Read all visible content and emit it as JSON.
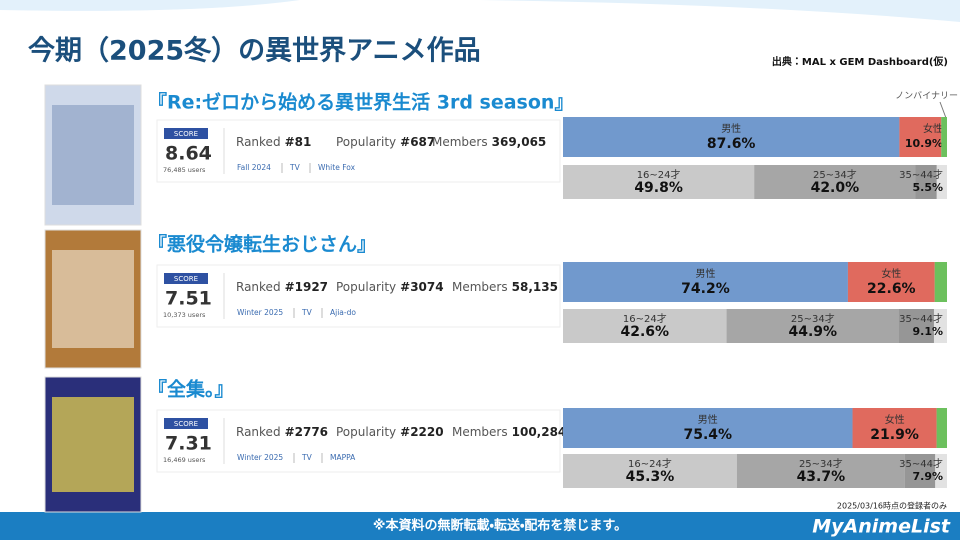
{
  "header": {
    "title": "今期（2025冬）の異世界アニメ作品",
    "source": "出典：MAL x GEM Dashboard(仮)",
    "nonbinary_label": "ノンバイナリー"
  },
  "entries": [
    {
      "title": "『Re:ゼロから始める異世界生活 3rd season』",
      "score_label": "SCORE",
      "score": "8.64",
      "users": "76,485 users",
      "ranked_label": "Ranked",
      "ranked": "#81",
      "popularity_label": "Popularity",
      "popularity": "#687",
      "members_label": "Members",
      "members": "369,065",
      "season": "Fall 2024",
      "format": "TV",
      "studio": "White Fox",
      "gender": [
        {
          "name": "男性",
          "value": 87.6,
          "label": "87.6%",
          "color": "#7199cd"
        },
        {
          "name": "女性",
          "value": 10.9,
          "label": "10.9%",
          "color": "#e06a5e"
        },
        {
          "value": 1.5,
          "color": "#6cc05d"
        }
      ],
      "age": [
        {
          "name": "16~24才",
          "value": 49.8,
          "label": "49.8%",
          "color": "#c9c9c9"
        },
        {
          "name": "25~34才",
          "value": 42.0,
          "label": "42.0%",
          "color": "#a6a6a6"
        },
        {
          "name": "35~44才",
          "value": 5.5,
          "label": "5.5%",
          "color": "#969696"
        }
      ]
    },
    {
      "title": "『悪役令嬢転生おじさん』",
      "score_label": "SCORE",
      "score": "7.51",
      "users": "10,373 users",
      "ranked_label": "Ranked",
      "ranked": "#1927",
      "popularity_label": "Popularity",
      "popularity": "#3074",
      "members_label": "Members",
      "members": "58,135",
      "season": "Winter 2025",
      "format": "TV",
      "studio": "Ajia-do",
      "gender": [
        {
          "name": "男性",
          "value": 74.2,
          "label": "74.2%",
          "color": "#7199cd"
        },
        {
          "name": "女性",
          "value": 22.6,
          "label": "22.6%",
          "color": "#e06a5e"
        },
        {
          "value": 3.2,
          "color": "#6cc05d"
        }
      ],
      "age": [
        {
          "name": "16~24才",
          "value": 42.6,
          "label": "42.6%",
          "color": "#c9c9c9"
        },
        {
          "name": "25~34才",
          "value": 44.9,
          "label": "44.9%",
          "color": "#a6a6a6"
        },
        {
          "name": "35~44才",
          "value": 9.1,
          "label": "9.1%",
          "color": "#969696"
        }
      ]
    },
    {
      "title": "『全集。』",
      "score_label": "SCORE",
      "score": "7.31",
      "users": "16,469 users",
      "ranked_label": "Ranked",
      "ranked": "#2776",
      "popularity_label": "Popularity",
      "popularity": "#2220",
      "members_label": "Members",
      "members": "100,284",
      "season": "Winter 2025",
      "format": "TV",
      "studio": "MAPPA",
      "gender": [
        {
          "name": "男性",
          "value": 75.4,
          "label": "75.4%",
          "color": "#7199cd"
        },
        {
          "name": "女性",
          "value": 21.9,
          "label": "21.9%",
          "color": "#e06a5e"
        },
        {
          "value": 2.7,
          "color": "#6cc05d"
        }
      ],
      "age": [
        {
          "name": "16~24才",
          "value": 45.3,
          "label": "45.3%",
          "color": "#c9c9c9"
        },
        {
          "name": "25~34才",
          "value": 43.7,
          "label": "43.7%",
          "color": "#a6a6a6"
        },
        {
          "name": "35~44才",
          "value": 7.9,
          "label": "7.9%",
          "color": "#969696"
        }
      ]
    }
  ],
  "note": "2025/03/16時点の登録者のみ",
  "footer": "※本資料の無断転載・転送・配布を禁じます。",
  "brand": "MyAnimeList"
}
